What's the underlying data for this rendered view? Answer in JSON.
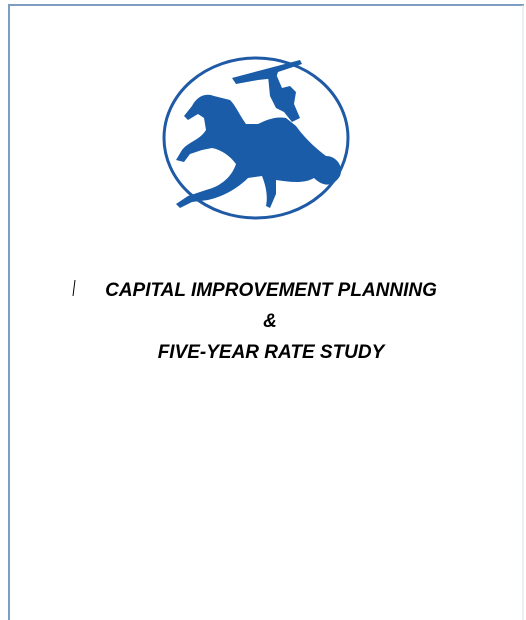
{
  "title": {
    "line1": "CAPITAL IMPROVEMENT PLANNING",
    "line2": "&",
    "line3": "FIVE-YEAR RATE STUDY"
  }
}
